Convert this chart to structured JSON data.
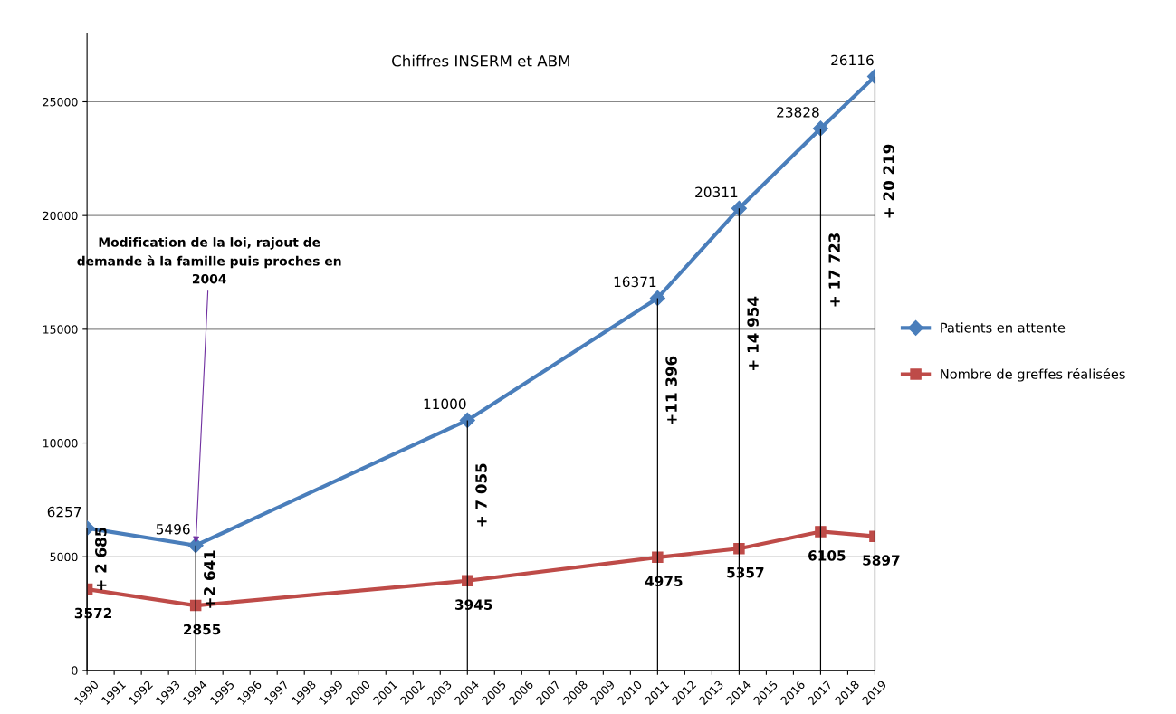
{
  "chart_data": {
    "type": "line",
    "title": "Chiffres INSERM et ABM",
    "xlim": [
      1990,
      2019
    ],
    "xticks": [
      1990,
      1991,
      1992,
      1993,
      1994,
      1995,
      1996,
      1997,
      1998,
      1999,
      2000,
      2001,
      2002,
      2003,
      2004,
      2005,
      2006,
      2007,
      2008,
      2009,
      2010,
      2011,
      2012,
      2013,
      2014,
      2015,
      2016,
      2017,
      2018,
      2019
    ],
    "ylim": [
      0,
      28000
    ],
    "yticks": [
      0,
      5000,
      10000,
      15000,
      20000,
      25000
    ],
    "grid": "y",
    "legend": "right",
    "series": [
      {
        "name": "Patients en attente",
        "color": "#4a7ebb",
        "marker": "diamond",
        "x": [
          1990,
          1994,
          2004,
          2011,
          2014,
          2017,
          2019
        ],
        "values": [
          6257,
          5496,
          11000,
          16371,
          20311,
          23828,
          26116
        ],
        "value_labels": [
          "6257",
          "5496",
          "11000",
          "16371",
          "20311",
          "23828",
          "26116"
        ]
      },
      {
        "name": "Nombre de greffes réalisées",
        "color": "#be4b48",
        "marker": "square",
        "x": [
          1990,
          1994,
          2004,
          2011,
          2014,
          2017,
          2019
        ],
        "values": [
          3572,
          2855,
          3945,
          4975,
          5357,
          6105,
          5897
        ],
        "value_labels": [
          "3572",
          "2855",
          "3945",
          "4975",
          "5357",
          "6105",
          "5897"
        ]
      },
      {
        "type": "bar",
        "color": "#000000",
        "x": [
          1990,
          1994,
          2004,
          2011,
          2014,
          2017,
          2019
        ],
        "values": [
          6257,
          5496,
          11000,
          16371,
          20311,
          23828,
          26116
        ]
      }
    ],
    "annotations": [
      {
        "text": "Modification de la loi, rajout de demande à la famille puis proches en 2004",
        "x": 1994,
        "y": 5496
      },
      {
        "text": "+ 2 685",
        "x": 1990,
        "y": 4900
      },
      {
        "text": "+2 641",
        "x": 1994,
        "y": 4000
      },
      {
        "text": "+ 7 055",
        "x": 2004,
        "y": 7700
      },
      {
        "text": "+11 396",
        "x": 2011,
        "y": 12300
      },
      {
        "text": "+ 14 954",
        "x": 2014,
        "y": 14800
      },
      {
        "text": "+ 17 723",
        "x": 2017,
        "y": 17600
      },
      {
        "text": "+ 20 219",
        "x": 2019,
        "y": 21500
      }
    ]
  }
}
